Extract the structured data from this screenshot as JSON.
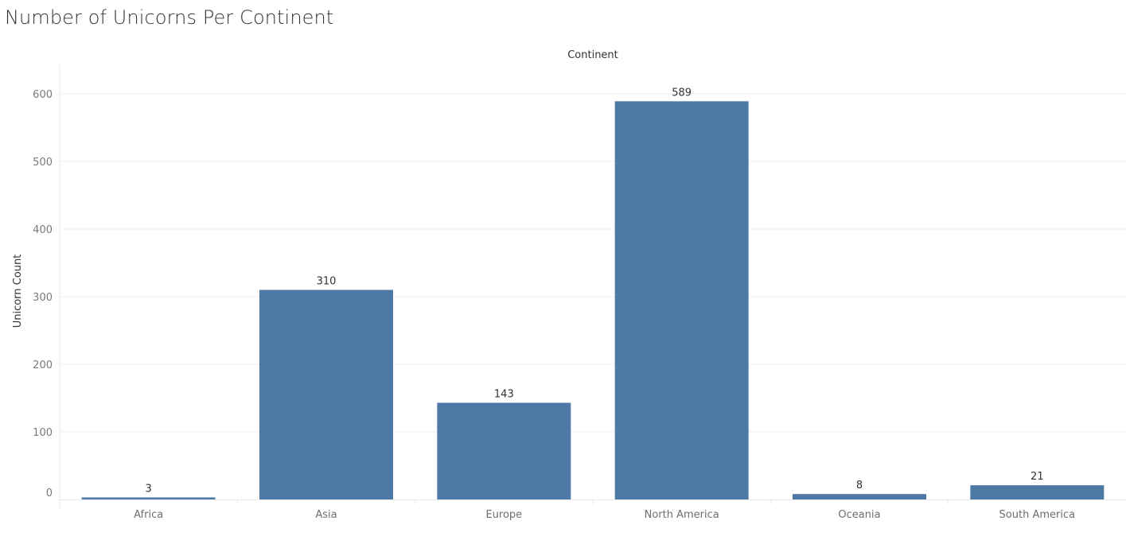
{
  "title": "Number of Unicorns Per Continent",
  "chart_data": {
    "type": "bar",
    "title": "Number of Unicorns Per Continent",
    "header_label": "Continent",
    "xlabel": "",
    "ylabel": "Unicorn Count",
    "categories": [
      "Africa",
      "Asia",
      "Europe",
      "North America",
      "Oceania",
      "South America"
    ],
    "values": [
      3,
      310,
      143,
      589,
      8,
      21
    ],
    "ylim": [
      0,
      640
    ],
    "yticks": [
      0,
      100,
      200,
      300,
      400,
      500,
      600
    ],
    "grid": true,
    "bar_color": "#4e79a7",
    "gridline_color": "#efefef",
    "divider_color": "#e8e8e8"
  }
}
